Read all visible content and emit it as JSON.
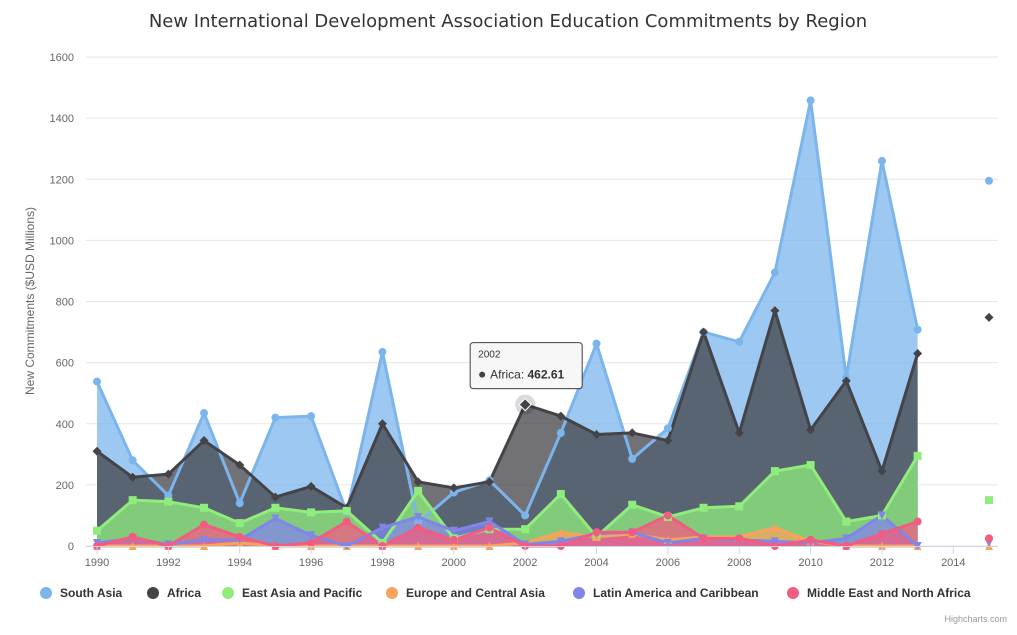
{
  "chart_data": {
    "type": "area",
    "title": "New International Development Association Education Commitments by Region",
    "ylabel": "New Commitments ($USD Millions)",
    "xlabel": "",
    "xlim": [
      1990,
      2015
    ],
    "ylim": [
      0,
      1600
    ],
    "y_ticks": [
      0,
      200,
      400,
      600,
      800,
      1000,
      1200,
      1400,
      1600
    ],
    "x_ticks": [
      1990,
      1992,
      1994,
      1996,
      1998,
      2000,
      2002,
      2004,
      2006,
      2008,
      2010,
      2012,
      2014
    ],
    "grid": "horizontal",
    "legend_position": "bottom",
    "x": [
      1990,
      1991,
      1992,
      1993,
      1994,
      1995,
      1996,
      1997,
      1998,
      1999,
      2000,
      2001,
      2002,
      2003,
      2004,
      2005,
      2006,
      2007,
      2008,
      2009,
      2010,
      2011,
      2012,
      2013,
      2014,
      2015
    ],
    "series": [
      {
        "name": "South Asia",
        "color": "#7cb5ec",
        "marker": "circle",
        "values": [
          538,
          280,
          165,
          435,
          140,
          420,
          425,
          110,
          635,
          75,
          175,
          215,
          100,
          370,
          662,
          285,
          385,
          700,
          668,
          895,
          1458,
          550,
          1260,
          708,
          null,
          1195
        ]
      },
      {
        "name": "Africa",
        "color": "#434348",
        "marker": "diamond",
        "values": [
          310,
          225,
          235,
          345,
          265,
          160,
          195,
          125,
          400,
          210,
          190,
          210,
          462.61,
          425,
          365,
          370,
          345,
          700,
          370,
          770,
          380,
          540,
          245,
          630,
          null,
          748
        ]
      },
      {
        "name": "East Asia and Pacific",
        "color": "#90ed7d",
        "marker": "square",
        "values": [
          50,
          150,
          145,
          125,
          75,
          125,
          110,
          115,
          10,
          180,
          25,
          55,
          55,
          170,
          30,
          135,
          95,
          125,
          130,
          245,
          265,
          80,
          100,
          295,
          null,
          150
        ]
      },
      {
        "name": "Europe and Central Asia",
        "color": "#f7a35c",
        "marker": "triangle",
        "values": [
          0,
          0,
          0,
          0,
          10,
          0,
          0,
          0,
          0,
          0,
          0,
          0,
          10,
          45,
          30,
          40,
          20,
          30,
          30,
          60,
          15,
          0,
          0,
          0,
          null,
          0
        ]
      },
      {
        "name": "Latin America and Caribbean",
        "color": "#8085e9",
        "marker": "triangle-down",
        "values": [
          10,
          25,
          5,
          20,
          20,
          90,
          35,
          0,
          60,
          95,
          50,
          80,
          5,
          15,
          40,
          45,
          10,
          25,
          20,
          15,
          10,
          25,
          100,
          0,
          null,
          10
        ]
      },
      {
        "name": "Middle East and North Africa",
        "color": "#f15c80",
        "marker": "circle",
        "values": [
          0,
          30,
          0,
          70,
          30,
          0,
          10,
          80,
          0,
          60,
          20,
          60,
          0,
          0,
          45,
          45,
          100,
          25,
          25,
          0,
          20,
          0,
          40,
          80,
          null,
          25
        ]
      }
    ],
    "tooltip": {
      "category": "2002",
      "series": "Africa",
      "value": "462.61"
    },
    "credits": "Highcharts.com"
  }
}
